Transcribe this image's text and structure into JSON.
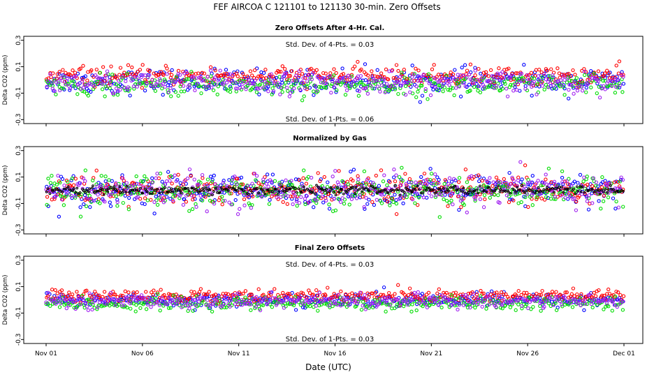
{
  "title": "FEF   AIRCOA C   121101 to 121130   30-min. Zero Offsets",
  "xlabel": "Date (UTC)",
  "colors": {
    "series1": "#0000ff",
    "series2": "#ff0000",
    "series3": "#00dd00",
    "series4": "#a020f0",
    "normalized": "#000000"
  },
  "chart_data": [
    {
      "type": "scatter",
      "title": "Zero Offsets After 4-Hr. Cal.",
      "ylabel": "Delta CO2 (ppm)",
      "ylim": [
        -0.33,
        0.33
      ],
      "y_ticks": [
        "-0.3",
        "-0.1",
        "0.1",
        "0.3"
      ],
      "xlim": [
        0,
        30
      ],
      "x_tick_values": [
        0,
        5,
        10,
        15,
        20,
        25,
        30
      ],
      "x_tick_labels": [
        "Nov 01",
        "Nov 06",
        "Nov 11",
        "Nov 16",
        "Nov 21",
        "Nov 26",
        "Dec 01"
      ],
      "annotations": [
        "Std. Dev. of 4-Pts. =  0.03",
        "Std. Dev. of 1-Pts. =  0.06"
      ],
      "series": [
        {
          "color": "#0000ff",
          "mean": -0.01,
          "sd": 0.045
        },
        {
          "color": "#ff0000",
          "mean": 0.03,
          "sd": 0.035
        },
        {
          "color": "#00dd00",
          "mean": -0.04,
          "sd": 0.04
        },
        {
          "color": "#a020f0",
          "mean": -0.02,
          "sd": 0.04
        }
      ]
    },
    {
      "type": "scatter",
      "title": "Normalized by Gas",
      "ylabel": "Delta CO2 (ppm)",
      "ylim": [
        -0.33,
        0.33
      ],
      "y_ticks": [
        "-0.3",
        "-0.1",
        "0.1",
        "0.3"
      ],
      "xlim": [
        0,
        30
      ],
      "x_tick_values": [
        0,
        5,
        10,
        15,
        20,
        25,
        30
      ],
      "x_tick_labels": [
        "Nov 01",
        "Nov 06",
        "Nov 11",
        "Nov 16",
        "Nov 21",
        "Nov 26",
        "Dec 01"
      ],
      "annotations": [],
      "series": [
        {
          "color": "#0000ff",
          "mean": 0.0,
          "sd": 0.06
        },
        {
          "color": "#ff0000",
          "mean": 0.0,
          "sd": 0.06
        },
        {
          "color": "#00dd00",
          "mean": 0.0,
          "sd": 0.06
        },
        {
          "color": "#a020f0",
          "mean": 0.0,
          "sd": 0.06
        },
        {
          "color": "#000000",
          "mean": 0.0,
          "sd": 0.015
        }
      ]
    },
    {
      "type": "scatter",
      "title": "Final Zero Offsets",
      "ylabel": "Delta CO2 (ppm)",
      "ylim": [
        -0.33,
        0.33
      ],
      "y_ticks": [
        "-0.3",
        "-0.1",
        "0.1",
        "0.3"
      ],
      "xlim": [
        0,
        30
      ],
      "x_tick_values": [
        0,
        5,
        10,
        15,
        20,
        25,
        30
      ],
      "x_tick_labels": [
        "Nov 01",
        "Nov 06",
        "Nov 11",
        "Nov 16",
        "Nov 21",
        "Nov 26",
        "Dec 01"
      ],
      "annotations": [
        "Std. Dev. of 4-Pts. =  0.03",
        "Std. Dev. of 1-Pts. =  0.03"
      ],
      "series": [
        {
          "color": "#0000ff",
          "mean": 0.0,
          "sd": 0.025
        },
        {
          "color": "#ff0000",
          "mean": 0.03,
          "sd": 0.025
        },
        {
          "color": "#00dd00",
          "mean": -0.03,
          "sd": 0.025
        },
        {
          "color": "#a020f0",
          "mean": -0.01,
          "sd": 0.025
        }
      ]
    }
  ]
}
